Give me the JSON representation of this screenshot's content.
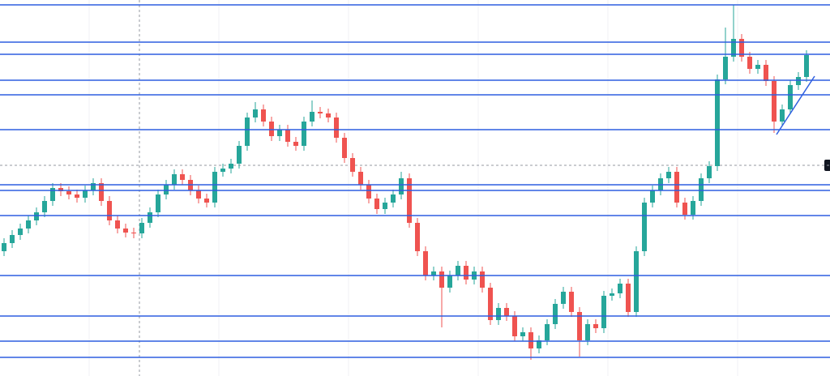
{
  "chart_data": {
    "type": "candlestick",
    "xlim": [
      -0.5,
      101.9
    ],
    "ylim": [
      0,
      464
    ],
    "up_color": "#26a69a",
    "down_color": "#ef5350",
    "level_color": "#2f5fe0",
    "open": [
      154,
      164,
      174,
      182,
      192,
      202,
      216,
      232,
      228,
      224,
      220,
      229,
      238,
      216,
      192,
      182,
      177,
      176,
      189,
      202,
      224,
      236,
      249,
      242,
      229,
      219,
      214,
      252,
      256,
      262,
      284,
      319,
      329,
      314,
      296,
      304,
      289,
      284,
      314,
      326,
      324,
      319,
      294,
      269,
      252,
      236,
      219,
      206,
      214,
      224,
      244,
      189,
      154,
      124,
      129,
      109,
      124,
      136,
      119,
      129,
      109,
      69,
      84,
      74,
      49,
      54,
      34,
      44,
      64,
      89,
      104,
      79,
      44,
      64,
      59,
      99,
      102,
      114,
      79,
      154,
      214,
      229,
      244,
      252,
      214,
      199,
      216,
      244,
      259,
      366,
      394,
      416,
      394,
      379,
      384,
      364,
      314,
      329,
      359,
      369
    ],
    "high": [
      170,
      180,
      188,
      198,
      208,
      222,
      238,
      238,
      234,
      230,
      235,
      244,
      244,
      222,
      198,
      188,
      183,
      195,
      208,
      230,
      242,
      255,
      255,
      248,
      235,
      225,
      258,
      262,
      268,
      290,
      325,
      338,
      335,
      320,
      310,
      310,
      295,
      320,
      340,
      332,
      330,
      325,
      300,
      275,
      258,
      242,
      225,
      220,
      230,
      252,
      250,
      195,
      160,
      135,
      135,
      130,
      142,
      142,
      135,
      135,
      115,
      90,
      90,
      80,
      60,
      60,
      50,
      70,
      95,
      110,
      110,
      85,
      70,
      70,
      105,
      108,
      120,
      120,
      160,
      220,
      235,
      250,
      258,
      258,
      220,
      222,
      250,
      265,
      372,
      430,
      458,
      422,
      400,
      390,
      390,
      370,
      335,
      365,
      375,
      402
    ],
    "low": [
      148,
      158,
      168,
      176,
      186,
      196,
      210,
      222,
      218,
      214,
      214,
      223,
      210,
      186,
      176,
      171,
      170,
      170,
      183,
      196,
      218,
      230,
      236,
      223,
      213,
      208,
      208,
      246,
      250,
      256,
      278,
      313,
      308,
      290,
      290,
      283,
      278,
      278,
      308,
      318,
      313,
      288,
      263,
      246,
      230,
      213,
      200,
      200,
      208,
      218,
      183,
      148,
      118,
      118,
      60,
      103,
      118,
      113,
      113,
      103,
      63,
      63,
      68,
      43,
      43,
      20,
      28,
      38,
      58,
      83,
      73,
      24,
      38,
      53,
      53,
      93,
      96,
      73,
      73,
      148,
      208,
      223,
      238,
      208,
      193,
      193,
      210,
      238,
      253,
      360,
      388,
      388,
      373,
      373,
      358,
      300,
      308,
      323,
      353,
      363
    ],
    "close": [
      164,
      174,
      182,
      192,
      202,
      216,
      232,
      228,
      224,
      220,
      229,
      238,
      216,
      192,
      182,
      177,
      176,
      189,
      202,
      224,
      236,
      249,
      242,
      229,
      219,
      214,
      252,
      256,
      262,
      284,
      319,
      329,
      314,
      296,
      304,
      289,
      284,
      314,
      326,
      324,
      319,
      294,
      269,
      252,
      236,
      219,
      206,
      214,
      224,
      244,
      189,
      154,
      124,
      129,
      109,
      124,
      136,
      119,
      129,
      109,
      69,
      84,
      74,
      49,
      54,
      34,
      44,
      64,
      89,
      104,
      79,
      44,
      64,
      59,
      99,
      102,
      114,
      79,
      154,
      214,
      229,
      244,
      252,
      214,
      199,
      216,
      244,
      259,
      366,
      394,
      416,
      394,
      379,
      384,
      364,
      314,
      329,
      359,
      369,
      396
    ],
    "levels": [
      458,
      412,
      397,
      365,
      347,
      304,
      236,
      229,
      198,
      124,
      74,
      43,
      23
    ],
    "price_line": 260,
    "trendline": {
      "start": [
        95.3,
        298
      ],
      "end": [
        100,
        370
      ]
    }
  }
}
